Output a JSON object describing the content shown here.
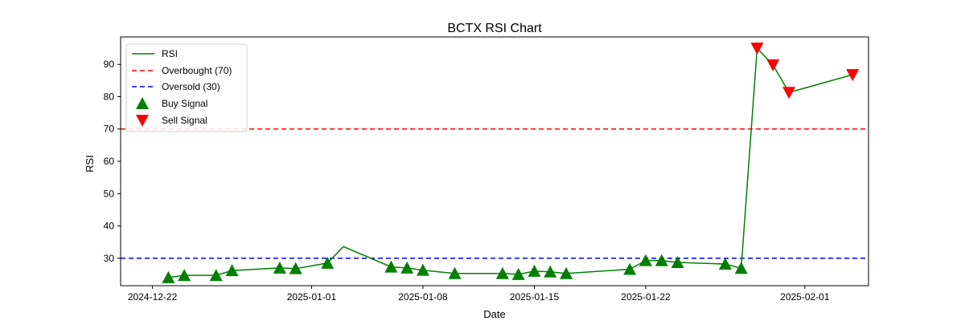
{
  "chart_data": {
    "type": "line",
    "title": "BCTX RSI Chart",
    "xlabel": "Date",
    "ylabel": "RSI",
    "xlim": [
      "2024-12-20",
      "2025-02-05"
    ],
    "ylim": [
      21.5,
      98.5
    ],
    "x_ticks": [
      "2024-12-22",
      "2025-01-01",
      "2025-01-08",
      "2025-01-15",
      "2025-01-22",
      "2025-02-01"
    ],
    "y_ticks": [
      30,
      40,
      50,
      60,
      70,
      80,
      90
    ],
    "grid": false,
    "legend_position": "top-left",
    "colors": {
      "rsi": "#008000",
      "overbought": "#ff0000",
      "oversold": "#0000ff",
      "buy": "#008000",
      "sell": "#ff0000"
    },
    "series": [
      {
        "name": "RSI",
        "x": [
          "2024-12-23",
          "2024-12-24",
          "2024-12-26",
          "2024-12-27",
          "2024-12-30",
          "2024-12-31",
          "2025-01-02",
          "2025-01-03",
          "2025-01-06",
          "2025-01-07",
          "2025-01-08",
          "2025-01-10",
          "2025-01-13",
          "2025-01-14",
          "2025-01-15",
          "2025-01-16",
          "2025-01-17",
          "2025-01-21",
          "2025-01-22",
          "2025-01-23",
          "2025-01-24",
          "2025-01-27",
          "2025-01-28",
          "2025-01-29",
          "2025-01-30",
          "2025-01-31",
          "2025-02-04"
        ],
        "y": [
          24.0,
          24.7,
          24.7,
          26.2,
          27.0,
          26.8,
          28.5,
          33.6,
          27.3,
          27.0,
          26.3,
          25.3,
          25.3,
          25.0,
          26.0,
          25.8,
          25.3,
          26.6,
          29.3,
          29.3,
          28.7,
          28.2,
          26.9,
          95.0,
          89.8,
          81.3,
          86.8
        ]
      },
      {
        "name": "Overbought (70)",
        "y": 70
      },
      {
        "name": "Oversold (30)",
        "y": 30
      },
      {
        "name": "Buy Signal",
        "x": [
          "2024-12-23",
          "2024-12-24",
          "2024-12-26",
          "2024-12-27",
          "2024-12-30",
          "2024-12-31",
          "2025-01-02",
          "2025-01-06",
          "2025-01-07",
          "2025-01-08",
          "2025-01-10",
          "2025-01-13",
          "2025-01-14",
          "2025-01-15",
          "2025-01-16",
          "2025-01-17",
          "2025-01-21",
          "2025-01-22",
          "2025-01-23",
          "2025-01-24",
          "2025-01-27",
          "2025-01-28"
        ],
        "y": [
          24.0,
          24.7,
          24.7,
          26.2,
          27.0,
          26.8,
          28.5,
          27.3,
          27.0,
          26.3,
          25.3,
          25.3,
          25.0,
          26.0,
          25.8,
          25.3,
          26.6,
          29.3,
          29.3,
          28.7,
          28.2,
          26.9
        ]
      },
      {
        "name": "Sell Signal",
        "x": [
          "2025-01-29",
          "2025-01-30",
          "2025-01-31",
          "2025-02-04"
        ],
        "y": [
          95.0,
          89.8,
          81.3,
          86.8
        ]
      }
    ]
  }
}
